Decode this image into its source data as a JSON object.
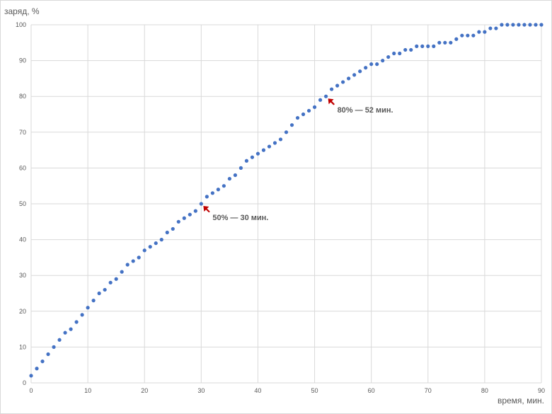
{
  "chart_data": {
    "type": "scatter",
    "xlabel": "время, мин.",
    "ylabel": "заряд, %",
    "xlim": [
      0,
      90
    ],
    "ylim": [
      0,
      100
    ],
    "xticks": [
      0,
      10,
      20,
      30,
      40,
      50,
      60,
      70,
      80,
      90
    ],
    "yticks": [
      0,
      10,
      20,
      30,
      40,
      50,
      60,
      70,
      80,
      90,
      100
    ],
    "grid": true,
    "legend": "none",
    "colors": {
      "series": "#4472c4",
      "arrow": "#c00000",
      "grid": "#d9d9d9",
      "text": "#595959"
    },
    "series": [
      {
        "x": [
          0,
          1,
          2,
          3,
          4,
          5,
          6,
          7,
          8,
          9,
          10,
          11,
          12,
          13,
          14,
          15,
          16,
          17,
          18,
          19,
          20,
          21,
          22,
          23,
          24,
          25,
          26,
          27,
          28,
          29,
          30,
          31,
          32,
          33,
          34,
          35,
          36,
          37,
          38,
          39,
          40,
          41,
          42,
          43,
          44,
          45,
          46,
          47,
          48,
          49,
          50,
          51,
          52,
          53,
          54,
          55,
          56,
          57,
          58,
          59,
          60,
          61,
          62,
          63,
          64,
          65,
          66,
          67,
          68,
          69,
          70,
          71,
          72,
          73,
          74,
          75,
          76,
          77,
          78,
          79,
          80,
          81,
          82,
          83,
          84,
          85,
          86,
          87,
          88,
          89,
          90
        ],
        "values": [
          2,
          4,
          6,
          8,
          10,
          12,
          14,
          15,
          17,
          19,
          21,
          23,
          25,
          26,
          28,
          29,
          31,
          33,
          34,
          35,
          37,
          38,
          39,
          40,
          42,
          43,
          45,
          46,
          47,
          48,
          50,
          52,
          53,
          54,
          55,
          57,
          58,
          60,
          62,
          63,
          64,
          65,
          66,
          67,
          68,
          70,
          72,
          74,
          75,
          76,
          77,
          79,
          80,
          82,
          83,
          84,
          85,
          86,
          87,
          88,
          89,
          89,
          90,
          91,
          92,
          92,
          93,
          93,
          94,
          94,
          94,
          94,
          95,
          95,
          95,
          96,
          97,
          97,
          97,
          98,
          98,
          99,
          99,
          100,
          100,
          100,
          100,
          100,
          100,
          100,
          100
        ]
      }
    ],
    "annotations": [
      {
        "text": "50% — 30 мин.",
        "x": 30,
        "y": 50
      },
      {
        "text": "80% — 52 мин.",
        "x": 52,
        "y": 80
      }
    ]
  }
}
